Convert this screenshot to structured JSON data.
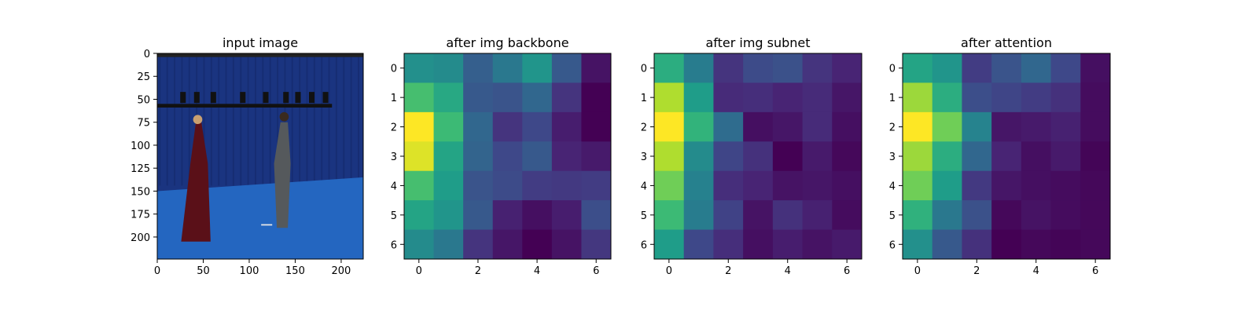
{
  "chart_data": [
    {
      "type": "image",
      "title": "input image",
      "image_description": "Blue studio scene with a truss of lights; a woman in a long red dress at left and a man in gray clothing at right",
      "xlim": [
        0,
        224
      ],
      "ylim": [
        224,
        0
      ],
      "xticks": [
        0,
        50,
        100,
        150,
        200
      ],
      "yticks": [
        0,
        25,
        50,
        75,
        100,
        125,
        150,
        175,
        200
      ],
      "colors": {
        "backdrop": "#1a3480",
        "floor": "#2466c0",
        "truss": "#111111",
        "dress": "#5a1018",
        "man": "#55595c"
      }
    },
    {
      "type": "heatmap",
      "title": "after img backbone",
      "colormap": "viridis",
      "xticks": [
        0,
        2,
        4,
        6
      ],
      "yticks": [
        0,
        1,
        2,
        3,
        4,
        5,
        6
      ],
      "values": [
        [
          0.5,
          0.48,
          0.3,
          0.4,
          0.52,
          0.28,
          0.05
        ],
        [
          0.7,
          0.6,
          0.28,
          0.26,
          0.33,
          0.15,
          0.0
        ],
        [
          1.0,
          0.68,
          0.33,
          0.15,
          0.22,
          0.08,
          0.0
        ],
        [
          0.95,
          0.58,
          0.32,
          0.22,
          0.28,
          0.1,
          0.07
        ],
        [
          0.7,
          0.55,
          0.26,
          0.23,
          0.18,
          0.17,
          0.18
        ],
        [
          0.58,
          0.52,
          0.28,
          0.09,
          0.04,
          0.08,
          0.24
        ],
        [
          0.48,
          0.4,
          0.15,
          0.06,
          0.0,
          0.05,
          0.16
        ]
      ]
    },
    {
      "type": "heatmap",
      "title": "after img subnet",
      "colormap": "viridis",
      "xticks": [
        0,
        2,
        4,
        6
      ],
      "yticks": [
        0,
        1,
        2,
        3,
        4,
        5,
        6
      ],
      "values": [
        [
          0.62,
          0.42,
          0.15,
          0.23,
          0.25,
          0.15,
          0.1
        ],
        [
          0.88,
          0.55,
          0.12,
          0.13,
          0.1,
          0.12,
          0.06
        ],
        [
          1.0,
          0.65,
          0.35,
          0.04,
          0.06,
          0.12,
          0.04
        ],
        [
          0.88,
          0.48,
          0.21,
          0.14,
          0.0,
          0.07,
          0.02
        ],
        [
          0.78,
          0.44,
          0.13,
          0.1,
          0.05,
          0.06,
          0.04
        ],
        [
          0.68,
          0.42,
          0.2,
          0.05,
          0.14,
          0.09,
          0.03
        ],
        [
          0.55,
          0.22,
          0.13,
          0.04,
          0.08,
          0.05,
          0.07
        ]
      ]
    },
    {
      "type": "heatmap",
      "title": "after attention",
      "colormap": "viridis",
      "xticks": [
        0,
        2,
        4,
        6
      ],
      "yticks": [
        0,
        1,
        2,
        3,
        4,
        5,
        6
      ],
      "values": [
        [
          0.58,
          0.52,
          0.18,
          0.26,
          0.33,
          0.22,
          0.04
        ],
        [
          0.85,
          0.62,
          0.24,
          0.21,
          0.18,
          0.14,
          0.03
        ],
        [
          1.0,
          0.78,
          0.45,
          0.06,
          0.07,
          0.09,
          0.03
        ],
        [
          0.85,
          0.62,
          0.33,
          0.1,
          0.04,
          0.07,
          0.01
        ],
        [
          0.78,
          0.55,
          0.17,
          0.06,
          0.04,
          0.03,
          0.02
        ],
        [
          0.64,
          0.4,
          0.25,
          0.02,
          0.05,
          0.03,
          0.02
        ],
        [
          0.5,
          0.28,
          0.14,
          0.0,
          0.02,
          0.01,
          0.02
        ]
      ]
    }
  ]
}
